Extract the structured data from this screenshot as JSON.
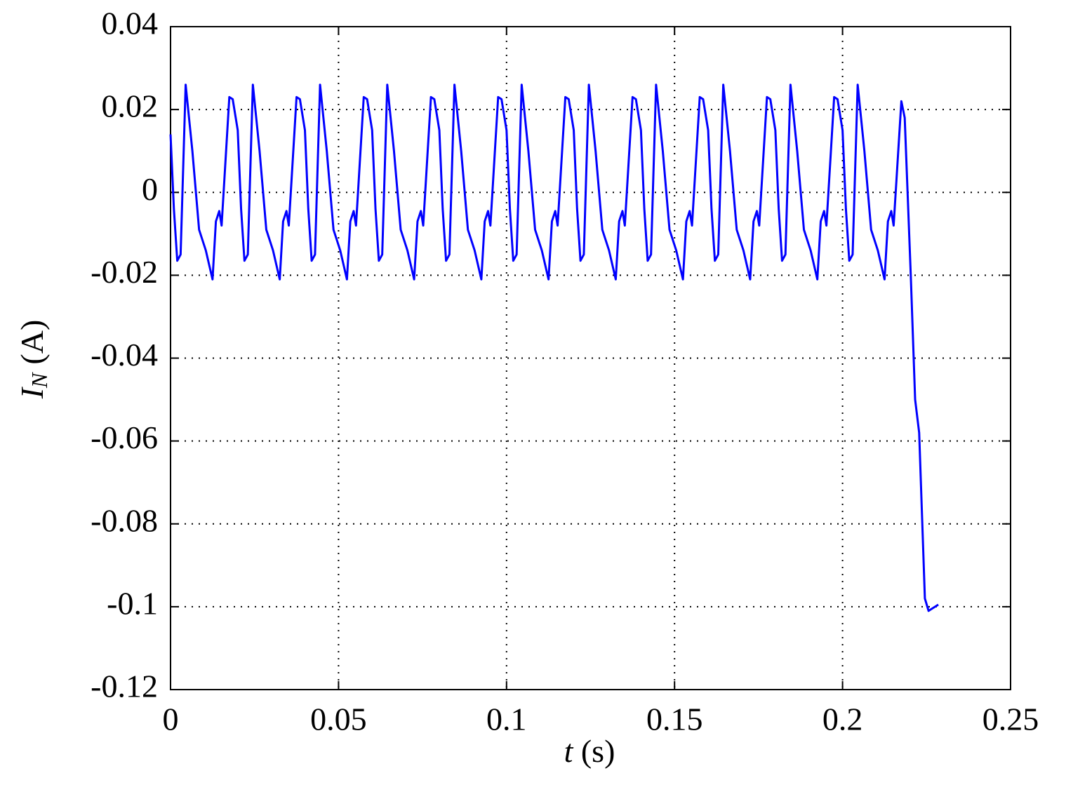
{
  "chart_data": {
    "type": "line",
    "xlabel": {
      "symbol": "t",
      "unit": "(s)"
    },
    "ylabel": {
      "symbol": "I",
      "subscript": "N",
      "unit": "(A)"
    },
    "color": "#0000ff",
    "grid": true,
    "xlim": [
      0,
      0.25
    ],
    "xticks": [
      0,
      0.05,
      0.1,
      0.15,
      0.2,
      0.25
    ],
    "ylim": [
      -0.12,
      0.04
    ],
    "yticks": [
      0.04,
      0.02,
      0,
      -0.02,
      -0.04,
      -0.06,
      -0.08,
      -0.1,
      -0.12
    ],
    "x": [
      0,
      0.001,
      0.002,
      0.003,
      0.0045,
      0.0065,
      0.0085,
      0.0105,
      0.0125,
      0.0135,
      0.0145,
      0.0152,
      0.0175,
      0.0185,
      0.02,
      0.021,
      0.022,
      0.023,
      0.0245,
      0.0265,
      0.0285,
      0.0305,
      0.0325,
      0.0335,
      0.0345,
      0.0352,
      0.0375,
      0.0385,
      0.04,
      0.041,
      0.042,
      0.043,
      0.0445,
      0.0465,
      0.0485,
      0.0505,
      0.0525,
      0.0535,
      0.0545,
      0.0552,
      0.0575,
      0.0585,
      0.06,
      0.061,
      0.062,
      0.063,
      0.0645,
      0.0665,
      0.0685,
      0.0705,
      0.0725,
      0.0735,
      0.0745,
      0.0752,
      0.0775,
      0.0785,
      0.08,
      0.081,
      0.082,
      0.083,
      0.0845,
      0.0865,
      0.0885,
      0.0905,
      0.0925,
      0.0935,
      0.0945,
      0.0952,
      0.0975,
      0.0985,
      0.1,
      0.101,
      0.102,
      0.103,
      0.1045,
      0.1065,
      0.1085,
      0.1105,
      0.1125,
      0.1135,
      0.1145,
      0.1152,
      0.1175,
      0.1185,
      0.12,
      0.121,
      0.122,
      0.123,
      0.1245,
      0.1265,
      0.1285,
      0.1305,
      0.1325,
      0.1335,
      0.1345,
      0.1352,
      0.1375,
      0.1385,
      0.14,
      0.141,
      0.142,
      0.143,
      0.1445,
      0.1465,
      0.1485,
      0.1505,
      0.1525,
      0.1535,
      0.1545,
      0.1552,
      0.1575,
      0.1585,
      0.16,
      0.161,
      0.162,
      0.163,
      0.1645,
      0.1665,
      0.1685,
      0.1705,
      0.1725,
      0.1735,
      0.1745,
      0.1752,
      0.1775,
      0.1785,
      0.18,
      0.181,
      0.182,
      0.183,
      0.1845,
      0.1865,
      0.1885,
      0.1905,
      0.1925,
      0.1935,
      0.1945,
      0.1952,
      0.1975,
      0.1985,
      0.2,
      0.201,
      0.202,
      0.203,
      0.2045,
      0.2065,
      0.2085,
      0.2105,
      0.2125,
      0.2135,
      0.2145,
      0.2152,
      0.2175,
      0.2185,
      0.2203,
      0.2216,
      0.2228,
      0.2245,
      0.2256,
      0.2285
    ],
    "values": [
      0.014,
      -0.004,
      -0.0165,
      -0.015,
      0.026,
      0.01,
      -0.009,
      -0.014,
      -0.021,
      -0.007,
      -0.0045,
      -0.008,
      0.023,
      0.0225,
      0.015,
      -0.004,
      -0.0165,
      -0.015,
      0.026,
      0.01,
      -0.009,
      -0.014,
      -0.021,
      -0.007,
      -0.0045,
      -0.008,
      0.023,
      0.0225,
      0.015,
      -0.004,
      -0.0165,
      -0.015,
      0.026,
      0.01,
      -0.009,
      -0.014,
      -0.021,
      -0.007,
      -0.0045,
      -0.008,
      0.023,
      0.0225,
      0.015,
      -0.004,
      -0.0165,
      -0.015,
      0.026,
      0.01,
      -0.009,
      -0.014,
      -0.021,
      -0.007,
      -0.0045,
      -0.008,
      0.023,
      0.0225,
      0.015,
      -0.004,
      -0.0165,
      -0.015,
      0.026,
      0.01,
      -0.009,
      -0.014,
      -0.021,
      -0.007,
      -0.0045,
      -0.008,
      0.023,
      0.0225,
      0.015,
      -0.004,
      -0.0165,
      -0.015,
      0.026,
      0.01,
      -0.009,
      -0.014,
      -0.021,
      -0.007,
      -0.0045,
      -0.008,
      0.023,
      0.0225,
      0.015,
      -0.004,
      -0.0165,
      -0.015,
      0.026,
      0.01,
      -0.009,
      -0.014,
      -0.021,
      -0.007,
      -0.0045,
      -0.008,
      0.023,
      0.0225,
      0.015,
      -0.004,
      -0.0165,
      -0.015,
      0.026,
      0.01,
      -0.009,
      -0.014,
      -0.021,
      -0.007,
      -0.0045,
      -0.008,
      0.023,
      0.0225,
      0.015,
      -0.004,
      -0.0165,
      -0.015,
      0.026,
      0.01,
      -0.009,
      -0.014,
      -0.021,
      -0.007,
      -0.0045,
      -0.008,
      0.023,
      0.0225,
      0.015,
      -0.004,
      -0.0165,
      -0.015,
      0.026,
      0.01,
      -0.009,
      -0.014,
      -0.021,
      -0.007,
      -0.0045,
      -0.008,
      0.023,
      0.0225,
      0.015,
      -0.004,
      -0.0165,
      -0.015,
      0.026,
      0.01,
      -0.009,
      -0.014,
      -0.021,
      -0.007,
      -0.0045,
      -0.008,
      0.022,
      0.018,
      -0.02,
      -0.05,
      -0.058,
      -0.098,
      -0.101,
      -0.0995
    ]
  }
}
